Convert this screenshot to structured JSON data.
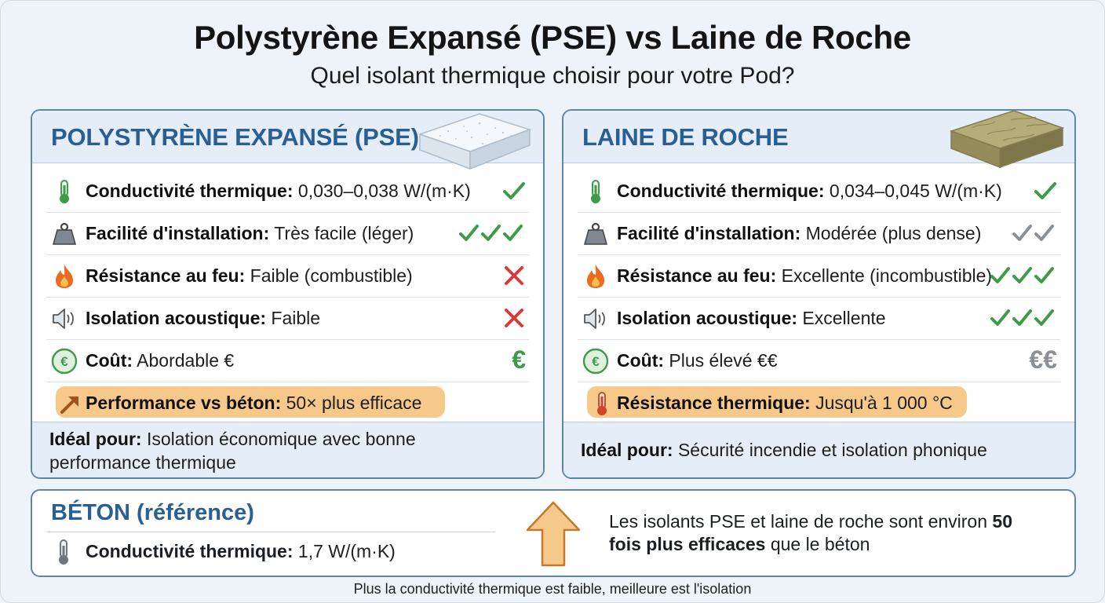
{
  "title": "Polystyrène Expansé (PSE) vs Laine de Roche",
  "subtitle": "Quel isolant thermique choisir pour votre Pod?",
  "pse": {
    "heading": "POLYSTYRÈNE EXPANSÉ (PSE)",
    "rows": [
      {
        "label": "Conductivité thermique:",
        "value": "0,030–0,038 W/(m·K)",
        "icon": "thermometer-icon",
        "rating": "check"
      },
      {
        "label": "Facilité d'installation:",
        "value": "Très facile (léger)",
        "icon": "weight-icon",
        "rating": "three-checks"
      },
      {
        "label": "Résistance au feu:",
        "value": "Faible (combustible)",
        "icon": "flame-icon",
        "rating": "cross"
      },
      {
        "label": "Isolation acoustique:",
        "value": "Faible",
        "icon": "speaker-icon",
        "rating": "cross"
      },
      {
        "label": "Coût:",
        "value": "Abordable €",
        "icon": "euro-coin-icon",
        "rating": "€"
      },
      {
        "label": "Performance vs béton:",
        "value": "50× plus efficace",
        "icon": "trend-arrow-icon",
        "rating": ""
      }
    ],
    "ideal_label": "Idéal pour:",
    "ideal_value": "Isolation économique avec bonne",
    "ideal_value_2": "performance thermique"
  },
  "laine": {
    "heading": "LAINE DE ROCHE",
    "rows": [
      {
        "label": "Conductivité thermique:",
        "value": "0,034–0,045 W/(m·K)",
        "icon": "thermometer-icon",
        "rating": "check"
      },
      {
        "label": "Facilité d'installation:",
        "value": "Modérée (plus dense)",
        "icon": "weight-icon",
        "rating": "two-grey-checks"
      },
      {
        "label": "Résistance au feu:",
        "value": "Excellente (incombustible)",
        "icon": "flame-icon",
        "rating": "three-checks"
      },
      {
        "label": "Isolation acoustique:",
        "value": "Excellente",
        "icon": "speaker-icon",
        "rating": "three-checks"
      },
      {
        "label": "Coût:",
        "value": "Plus élevé €€",
        "icon": "euro-coin-icon",
        "rating": "€€"
      },
      {
        "label": "Résistance thermique:",
        "value": "Jusqu'à 1 000 °C",
        "icon": "hot-thermometer-icon",
        "rating": ""
      }
    ],
    "ideal_label": "Idéal pour:",
    "ideal_value": "Sécurité incendie et isolation phonique"
  },
  "beton": {
    "heading": "BÉTON (référence)",
    "label": "Conductivité thermique:",
    "value": "1,7 W/(m·K)",
    "note_prefix": "Les isolants PSE et laine de roche sont environ",
    "note_bold_num": "50",
    "note_bold": "fois plus efficaces",
    "note_suffix": "que le béton"
  },
  "footer": "Plus la conductivité thermique est faible, meilleure est l'isolation",
  "colors": {
    "accent_blue": "#2a5f93",
    "check_green": "#3f9a4a",
    "cross_red": "#d83a3a",
    "highlight_orange": "#f6c98a",
    "grey_mark": "#8a9096"
  }
}
